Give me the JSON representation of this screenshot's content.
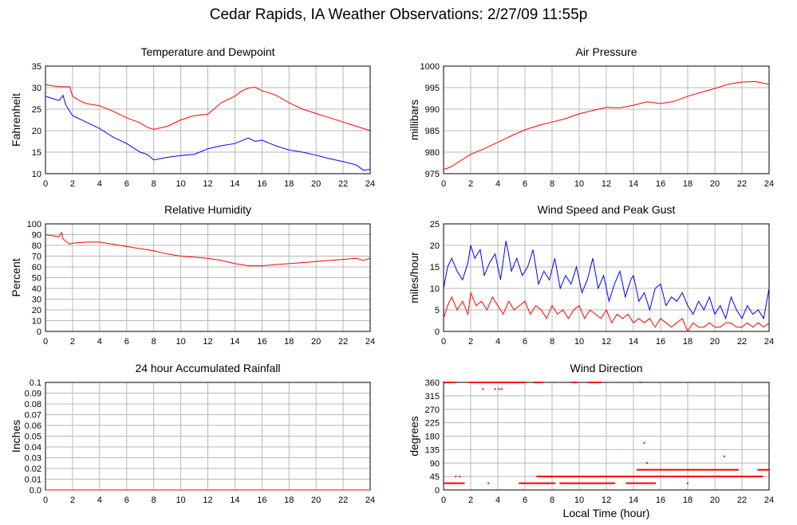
{
  "page": {
    "title": "Cedar Rapids, IA Weather Observations: 2/27/09 11:55p"
  },
  "chart_data": [
    {
      "id": "temperature",
      "type": "line",
      "title": "Temperature and Dewpoint",
      "xlabel": "",
      "ylabel": "Fahrenheit",
      "xlim": [
        0,
        24
      ],
      "ylim": [
        10,
        35
      ],
      "xticks": [
        0,
        2,
        4,
        6,
        8,
        10,
        12,
        14,
        16,
        18,
        20,
        22,
        24
      ],
      "yticks": [
        10,
        15,
        20,
        25,
        30,
        35
      ],
      "grid": true,
      "series": [
        {
          "color": "#ff0000",
          "x": [
            0,
            0.5,
            1,
            1.8,
            2,
            2.5,
            3,
            4,
            5,
            6,
            7,
            7.5,
            8,
            9,
            10,
            11,
            12,
            13,
            14,
            14.5,
            15,
            15.5,
            16,
            17,
            18,
            19,
            20,
            21,
            22,
            23,
            24
          ],
          "y": [
            30.7,
            30.4,
            30.2,
            30.2,
            28,
            27,
            26.3,
            25.8,
            24.5,
            23,
            21.8,
            20.8,
            20.3,
            21,
            22.5,
            23.5,
            23.8,
            26.5,
            28,
            29.2,
            29.9,
            30.1,
            29.3,
            28.3,
            26.5,
            25,
            24,
            23,
            22,
            21,
            20
          ]
        },
        {
          "color": "#0000ff",
          "x": [
            0,
            0.5,
            1,
            1.3,
            1.5,
            2,
            3,
            4,
            5,
            6,
            7,
            7.5,
            8,
            9,
            10,
            11,
            12,
            13,
            14,
            15,
            15.5,
            16,
            17,
            18,
            19,
            20,
            21,
            22,
            23,
            23.5,
            24
          ],
          "y": [
            28,
            27.5,
            27,
            28.2,
            26,
            23.5,
            22,
            20.5,
            18.5,
            17,
            15,
            14.5,
            13.2,
            13.8,
            14.2,
            14.5,
            15.8,
            16.5,
            17,
            18.3,
            17.5,
            17.8,
            16.5,
            15.5,
            15,
            14.3,
            13.5,
            12.8,
            12,
            10.8,
            11
          ]
        }
      ]
    },
    {
      "id": "pressure",
      "type": "line",
      "title": "Air Pressure",
      "xlabel": "",
      "ylabel": "millibars",
      "xlim": [
        0,
        24
      ],
      "ylim": [
        975,
        1000
      ],
      "xticks": [
        0,
        2,
        4,
        6,
        8,
        10,
        12,
        14,
        16,
        18,
        20,
        22,
        24
      ],
      "yticks": [
        975,
        980,
        985,
        990,
        995,
        1000
      ],
      "grid": true,
      "series": [
        {
          "color": "#ff0000",
          "x": [
            0,
            0.5,
            1,
            2,
            3,
            4,
            5,
            6,
            7,
            8,
            9,
            10,
            11,
            12,
            13,
            14,
            15,
            16,
            17,
            18,
            19,
            20,
            21,
            22,
            23,
            24
          ],
          "y": [
            976,
            976.5,
            977.5,
            979.5,
            980.8,
            982.3,
            983.8,
            985.2,
            986.2,
            987,
            987.8,
            988.9,
            989.7,
            990.4,
            990.3,
            990.9,
            991.7,
            991.3,
            991.8,
            993,
            993.9,
            994.8,
            995.8,
            996.3,
            996.4,
            995.8
          ]
        }
      ]
    },
    {
      "id": "humidity",
      "type": "line",
      "title": "Relative Humidity",
      "xlabel": "",
      "ylabel": "Percent",
      "xlim": [
        0,
        24
      ],
      "ylim": [
        0,
        100
      ],
      "xticks": [
        0,
        2,
        4,
        6,
        8,
        10,
        12,
        14,
        16,
        18,
        20,
        22,
        24
      ],
      "yticks": [
        0,
        10,
        20,
        30,
        40,
        50,
        60,
        70,
        80,
        90,
        100
      ],
      "grid": true,
      "series": [
        {
          "color": "#ff0000",
          "x": [
            0,
            0.5,
            1,
            1.2,
            1.3,
            1.5,
            1.8,
            2,
            3,
            4,
            5,
            6,
            7,
            8,
            9,
            10,
            11,
            12,
            13,
            14,
            15,
            16,
            17,
            18,
            19,
            20,
            21,
            22,
            23,
            23.5,
            24
          ],
          "y": [
            90,
            89,
            88,
            92,
            86,
            84,
            81,
            82,
            83,
            83,
            81,
            79,
            77,
            75,
            72,
            70,
            69,
            68,
            66,
            63,
            61,
            61,
            62,
            63,
            64,
            65,
            66,
            67,
            68,
            66,
            68
          ]
        }
      ]
    },
    {
      "id": "wind-speed",
      "type": "line",
      "title": "Wind Speed and Peak Gust",
      "xlabel": "",
      "ylabel": "miles/hour",
      "xlim": [
        0,
        24
      ],
      "ylim": [
        0,
        25
      ],
      "xticks": [
        0,
        2,
        4,
        6,
        8,
        10,
        12,
        14,
        16,
        18,
        20,
        22,
        24
      ],
      "yticks": [
        0,
        5,
        10,
        15,
        20,
        25
      ],
      "grid": true,
      "series": [
        {
          "color": "#0000ff",
          "x": [
            0,
            0.3,
            0.6,
            1,
            1.4,
            1.8,
            2,
            2.3,
            2.7,
            3,
            3.4,
            3.8,
            4.2,
            4.6,
            4.8,
            5,
            5.4,
            5.8,
            6.2,
            6.6,
            7,
            7.4,
            7.8,
            8.2,
            8.6,
            9,
            9.4,
            9.8,
            10.2,
            10.6,
            11,
            11.4,
            11.8,
            12.2,
            12.6,
            13,
            13.4,
            13.8,
            14,
            14.4,
            14.8,
            15.2,
            15.6,
            16,
            16.4,
            16.8,
            17.2,
            17.6,
            18,
            18.4,
            18.8,
            19.2,
            19.6,
            20,
            20.4,
            20.8,
            21.2,
            21.6,
            22,
            22.4,
            22.8,
            23.2,
            23.6,
            24
          ],
          "y": [
            10,
            15,
            17,
            14,
            12,
            16,
            20,
            17,
            19,
            13,
            16,
            18,
            12,
            21,
            18,
            14,
            17,
            13,
            15,
            19,
            11,
            14,
            12,
            17,
            10,
            13,
            11,
            15,
            9,
            12,
            17,
            10,
            13,
            7,
            11,
            14,
            8,
            12,
            13,
            7,
            9,
            5,
            10,
            11,
            6,
            8,
            7,
            9,
            6,
            4,
            7,
            5,
            8,
            4,
            6,
            3,
            8,
            5,
            3,
            6,
            4,
            5,
            3,
            10
          ]
        },
        {
          "color": "#ff0000",
          "x": [
            0,
            0.3,
            0.6,
            1,
            1.4,
            1.8,
            2,
            2.4,
            2.8,
            3.2,
            3.6,
            4,
            4.4,
            4.8,
            5.2,
            5.6,
            6,
            6.4,
            6.8,
            7.2,
            7.6,
            8,
            8.4,
            8.8,
            9.2,
            9.6,
            10,
            10.4,
            10.8,
            11.2,
            11.6,
            12,
            12.4,
            12.8,
            13.2,
            13.6,
            14,
            14.4,
            14.8,
            15.2,
            15.6,
            16,
            16.4,
            16.8,
            17.2,
            17.6,
            18,
            18.4,
            18.8,
            19.2,
            19.6,
            20,
            20.4,
            20.8,
            21.2,
            21.6,
            22,
            22.4,
            22.8,
            23.2,
            23.6,
            24
          ],
          "y": [
            3,
            6,
            8,
            5,
            7,
            4,
            9,
            6,
            7,
            5,
            8,
            6,
            4,
            7,
            5,
            6,
            7,
            4,
            6,
            5,
            3,
            6,
            4,
            5,
            3,
            5,
            6,
            3,
            5,
            4,
            3,
            5,
            2,
            4,
            3,
            4,
            2,
            3,
            2,
            3,
            1,
            3,
            2,
            1,
            2,
            3,
            0,
            2,
            1,
            1,
            2,
            1,
            1,
            2,
            2,
            1,
            1,
            2,
            1,
            2,
            1,
            2
          ]
        }
      ]
    },
    {
      "id": "rainfall",
      "type": "line",
      "title": "24 hour Accumulated Rainfall",
      "xlabel": "",
      "ylabel": "Inches",
      "xlim": [
        0,
        24
      ],
      "ylim": [
        0,
        0.1
      ],
      "xticks": [
        0,
        2,
        4,
        6,
        8,
        10,
        12,
        14,
        16,
        18,
        20,
        22,
        24
      ],
      "yticks": [
        "0.0",
        "0.01",
        "0.02",
        "0.03",
        "0.04",
        "0.05",
        "0.06",
        "0.07",
        "0.08",
        "0.09",
        "0.1"
      ],
      "grid": true,
      "series": [
        {
          "color": "#ff0000",
          "x": [
            0,
            24
          ],
          "y": [
            0,
            0
          ]
        }
      ]
    },
    {
      "id": "wind-direction",
      "type": "scatter",
      "title": "Wind Direction",
      "xlabel": "Local Time (hour)",
      "ylabel": "degrees",
      "xlim": [
        0,
        24
      ],
      "ylim": [
        0,
        360
      ],
      "xticks": [
        0,
        2,
        4,
        6,
        8,
        10,
        12,
        14,
        16,
        18,
        20,
        22,
        24
      ],
      "yticks": [
        0,
        45,
        90,
        135,
        180,
        225,
        270,
        315,
        360
      ],
      "grid": true,
      "series": [
        {
          "color": "#ff0000",
          "runs": [
            {
              "y": 360,
              "x_start": 0.0,
              "x_end": 0.9
            },
            {
              "y": 360,
              "x_start": 1.9,
              "x_end": 6.0
            },
            {
              "y": 360,
              "x_start": 6.7,
              "x_end": 7.3
            },
            {
              "y": 360,
              "x_start": 9.5,
              "x_end": 9.8
            },
            {
              "y": 360,
              "x_start": 10.7,
              "x_end": 11.6
            },
            {
              "y": 22.5,
              "x_start": 0.1,
              "x_end": 1.5
            },
            {
              "y": 22.5,
              "x_start": 5.6,
              "x_end": 8.2
            },
            {
              "y": 22.5,
              "x_start": 8.6,
              "x_end": 12.6
            },
            {
              "y": 22.5,
              "x_start": 13.5,
              "x_end": 15.6
            },
            {
              "y": 45,
              "x_start": 6.9,
              "x_end": 23.5
            },
            {
              "y": 67.5,
              "x_start": 14.3,
              "x_end": 21.7
            },
            {
              "y": 67.5,
              "x_start": 23.2,
              "x_end": 24.0
            }
          ],
          "points": [
            {
              "x": 0.9,
              "y": 45
            },
            {
              "x": 1.2,
              "y": 45
            },
            {
              "x": 2.9,
              "y": 337.5
            },
            {
              "x": 3.8,
              "y": 337.5
            },
            {
              "x": 4.1,
              "y": 337.5
            },
            {
              "x": 4.3,
              "y": 337.5
            },
            {
              "x": 3.3,
              "y": 22.5
            },
            {
              "x": 14.5,
              "y": 360
            },
            {
              "x": 14.8,
              "y": 157.5
            },
            {
              "x": 15.0,
              "y": 90
            },
            {
              "x": 18.0,
              "y": 22.5
            },
            {
              "x": 20.7,
              "y": 112.5
            }
          ]
        }
      ]
    }
  ]
}
